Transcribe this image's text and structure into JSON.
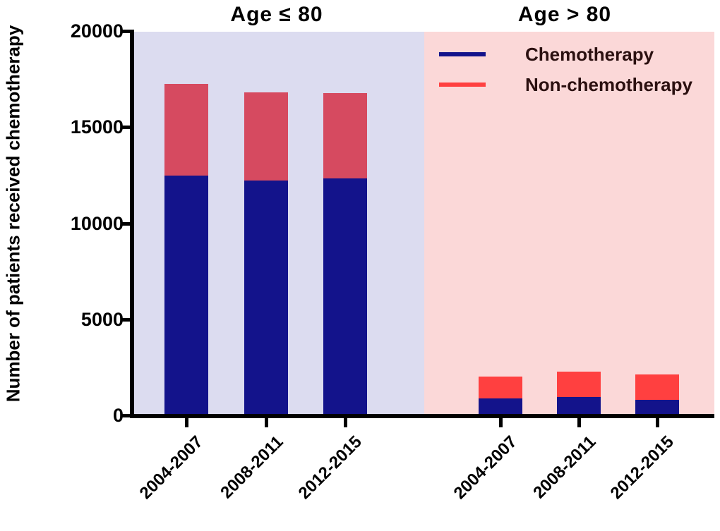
{
  "chart_data": {
    "type": "bar",
    "stacked": true,
    "ylabel": "Number of patients received chemotherapy",
    "ylim": [
      0,
      20000
    ],
    "yticks": [
      0,
      5000,
      10000,
      15000,
      20000
    ],
    "grid": false,
    "panels": [
      {
        "label": "Age ≤ 80",
        "background": "#DCDCF0",
        "categories": [
          "2004-2007",
          "2008-2011",
          "2012-2015"
        ],
        "series": [
          {
            "name": "Chemotherapy",
            "color": "#13138B",
            "values": [
              12500,
              12250,
              12350
            ]
          },
          {
            "name": "Non-chemotherapy",
            "color": "#D64A60",
            "values": [
              4800,
              4600,
              4450
            ]
          }
        ],
        "totals": [
          17300,
          16850,
          16800
        ]
      },
      {
        "label": "Age > 80",
        "background": "#FBD8D8",
        "categories": [
          "2004-2007",
          "2008-2011",
          "2012-2015"
        ],
        "series": [
          {
            "name": "Chemotherapy",
            "color": "#13138B",
            "values": [
              900,
              1000,
              850
            ]
          },
          {
            "name": "Non-chemotherapy",
            "color": "#FF4040",
            "values": [
              1150,
              1300,
              1300
            ]
          }
        ],
        "totals": [
          2050,
          2300,
          2150
        ]
      }
    ],
    "legend": {
      "position": "top-right",
      "text_color": "#2B1010",
      "items": [
        {
          "label": "Chemotherapy",
          "color": "#13138B"
        },
        {
          "label": "Non-chemotherapy",
          "color": "#FF4040"
        }
      ]
    }
  }
}
